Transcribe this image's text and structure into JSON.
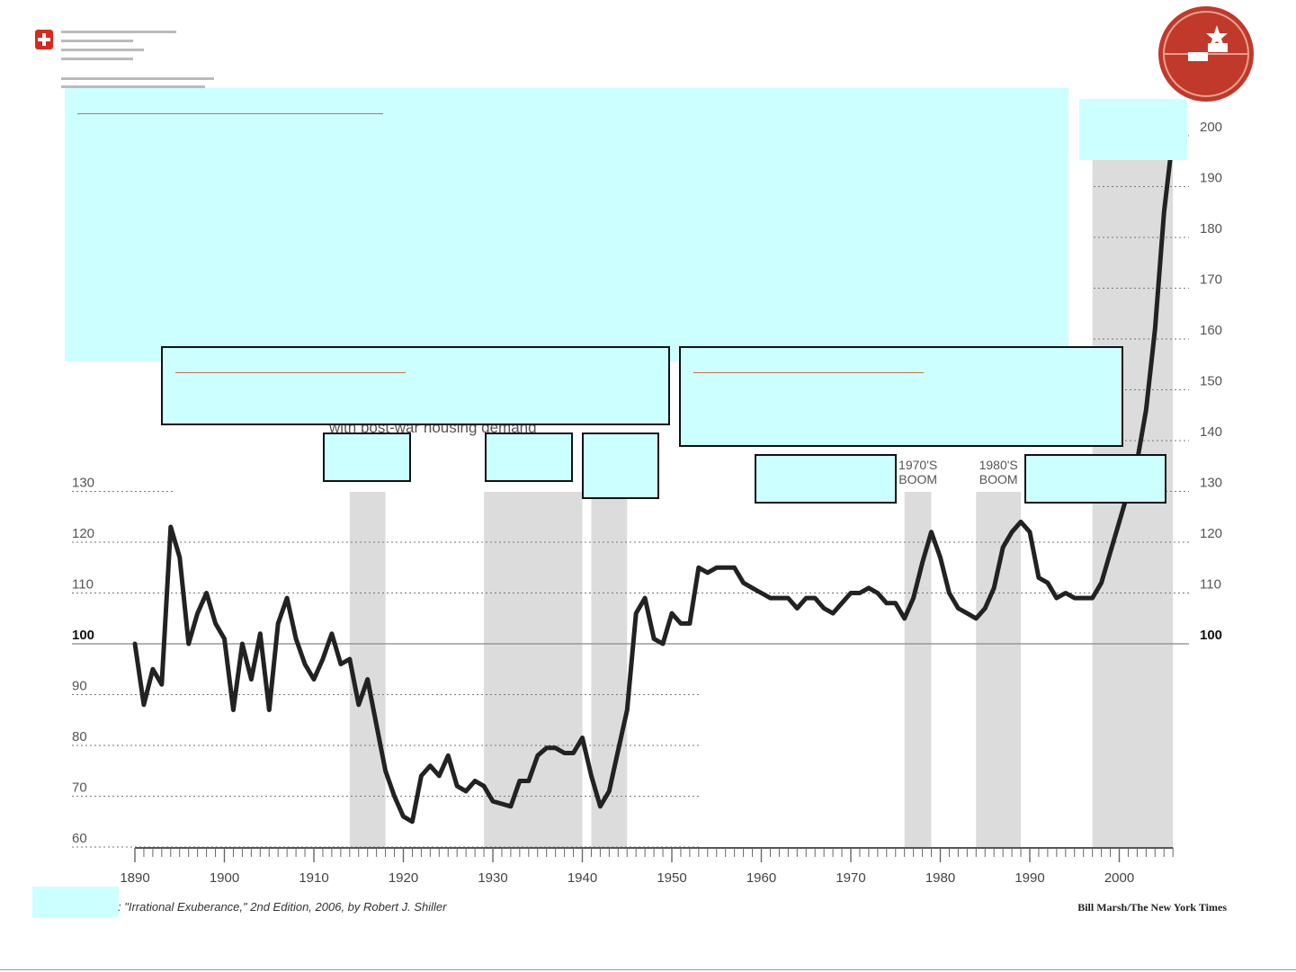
{
  "chart_data": {
    "type": "line",
    "xlim": [
      1890,
      2006
    ],
    "ylim": [
      60,
      205
    ],
    "x_ticks": [
      1890,
      1900,
      1910,
      1920,
      1930,
      1940,
      1950,
      1960,
      1970,
      1980,
      1990,
      2000
    ],
    "y_ticks_left": [
      130,
      120,
      110,
      100,
      90,
      80,
      70,
      60
    ],
    "y_ticks_right": [
      200,
      190,
      180,
      170,
      160,
      150,
      140,
      130,
      120,
      110,
      100
    ],
    "baseline": 100,
    "grid": "dotted",
    "shaded_periods": [
      {
        "start": 1914,
        "end": 1918
      },
      {
        "start": 1929,
        "end": 1940
      },
      {
        "start": 1941,
        "end": 1945
      },
      {
        "start": 1976,
        "end": 1979
      },
      {
        "start": 1984,
        "end": 1989
      },
      {
        "start": 1997,
        "end": 2006
      }
    ],
    "period_labels": [
      {
        "lines": [
          "1970'S",
          "BOOM"
        ],
        "period": 3
      },
      {
        "lines": [
          "1980'S",
          "BOOM"
        ],
        "period": 4
      }
    ],
    "annotation": "with post-war housing demand",
    "series": [
      {
        "color": "#222222",
        "x": [
          1890,
          1891,
          1892,
          1893,
          1894,
          1895,
          1896,
          1897,
          1898,
          1899,
          1900,
          1901,
          1902,
          1903,
          1904,
          1905,
          1906,
          1907,
          1908,
          1909,
          1910,
          1911,
          1912,
          1913,
          1914,
          1915,
          1916,
          1917,
          1918,
          1919,
          1920,
          1921,
          1922,
          1923,
          1924,
          1925,
          1926,
          1927,
          1928,
          1929,
          1930,
          1931,
          1932,
          1933,
          1934,
          1935,
          1936,
          1937,
          1938,
          1939,
          1940,
          1941,
          1942,
          1943,
          1944,
          1945,
          1946,
          1947,
          1948,
          1949,
          1950,
          1951,
          1952,
          1953,
          1954,
          1955,
          1956,
          1957,
          1958,
          1959,
          1960,
          1961,
          1962,
          1963,
          1964,
          1965,
          1966,
          1967,
          1968,
          1969,
          1970,
          1971,
          1972,
          1973,
          1974,
          1975,
          1976,
          1977,
          1978,
          1979,
          1980,
          1981,
          1982,
          1983,
          1984,
          1985,
          1986,
          1987,
          1988,
          1989,
          1990,
          1991,
          1992,
          1993,
          1994,
          1995,
          1996,
          1997,
          1998,
          1999,
          2000,
          2001,
          2002,
          2003,
          2004,
          2005,
          2006
        ],
        "y": [
          100,
          88,
          95,
          92,
          123,
          117,
          100,
          106,
          110,
          104,
          101,
          87,
          100,
          93,
          102,
          87,
          104,
          109,
          101,
          96,
          93,
          97,
          102,
          96,
          97,
          88,
          93,
          84,
          75,
          70,
          66,
          65,
          74,
          76,
          74,
          78,
          72,
          71,
          73,
          72,
          69,
          68.5,
          68,
          73,
          73,
          78,
          79.5,
          79.5,
          78.5,
          78.5,
          81.5,
          74,
          68,
          71,
          79,
          87,
          106,
          109,
          101,
          100,
          106,
          104,
          104,
          115,
          114,
          115,
          115,
          115,
          112,
          111,
          110,
          109,
          109,
          109,
          107,
          109,
          109,
          107,
          106,
          108,
          110,
          110,
          111,
          110,
          108,
          108,
          105,
          109,
          116,
          122,
          117,
          110,
          107,
          106,
          105,
          107,
          111,
          119,
          122,
          124,
          122,
          113,
          112,
          109,
          110,
          109,
          109,
          109,
          112,
          118,
          124,
          130,
          136,
          146,
          162,
          185,
          200
        ]
      }
    ],
    "source_text": ": \"Irrational Exuberance,\" 2nd Edition, 2006, by Robert J. Shiller",
    "credit": "Bill Marsh/The New York Times"
  }
}
